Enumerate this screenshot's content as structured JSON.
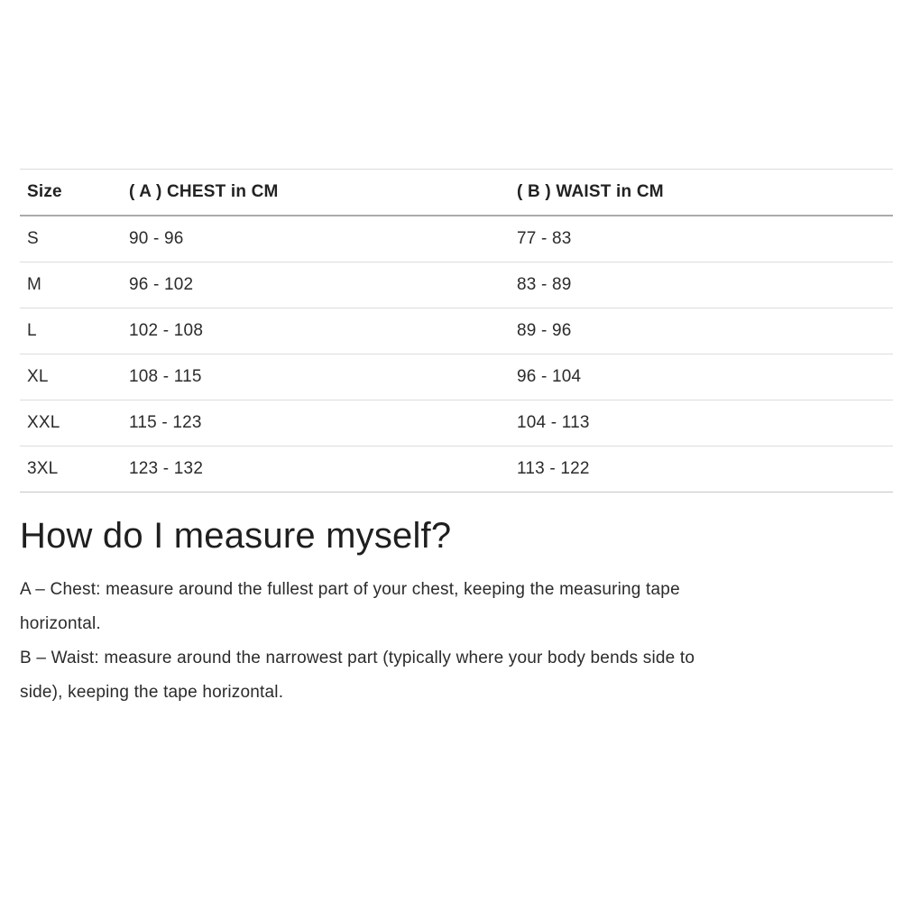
{
  "size_chart": {
    "columns": [
      "Size",
      "( A ) CHEST in CM",
      "( B ) WAIST in CM"
    ],
    "rows": [
      {
        "size": "S",
        "chest_cm": "90 - 96",
        "waist_cm": "77 - 83"
      },
      {
        "size": "M",
        "chest_cm": "96 - 102",
        "waist_cm": "83 - 89"
      },
      {
        "size": "L",
        "chest_cm": "102 - 108",
        "waist_cm": "89 - 96"
      },
      {
        "size": "XL",
        "chest_cm": "108 - 115",
        "waist_cm": "96 - 104"
      },
      {
        "size": "XXL",
        "chest_cm": "115 - 123",
        "waist_cm": "104 - 113"
      },
      {
        "size": "3XL",
        "chest_cm": "123 - 132",
        "waist_cm": "113 - 122"
      }
    ]
  },
  "measure_section": {
    "heading": "How do I measure myself?",
    "instructions": [
      {
        "lines": [
          "A – Chest: measure around the fullest part of your chest, keeping the measuring tape",
          "horizontal."
        ]
      },
      {
        "lines": [
          "B – Waist: measure around the narrowest part (typically where your body bends side to",
          "side), keeping the tape horizontal."
        ]
      }
    ]
  },
  "colors": {
    "background": "#ffffff",
    "text": "#2b2b2b",
    "row_border": "#dddddd",
    "header_border": "#ababab"
  }
}
